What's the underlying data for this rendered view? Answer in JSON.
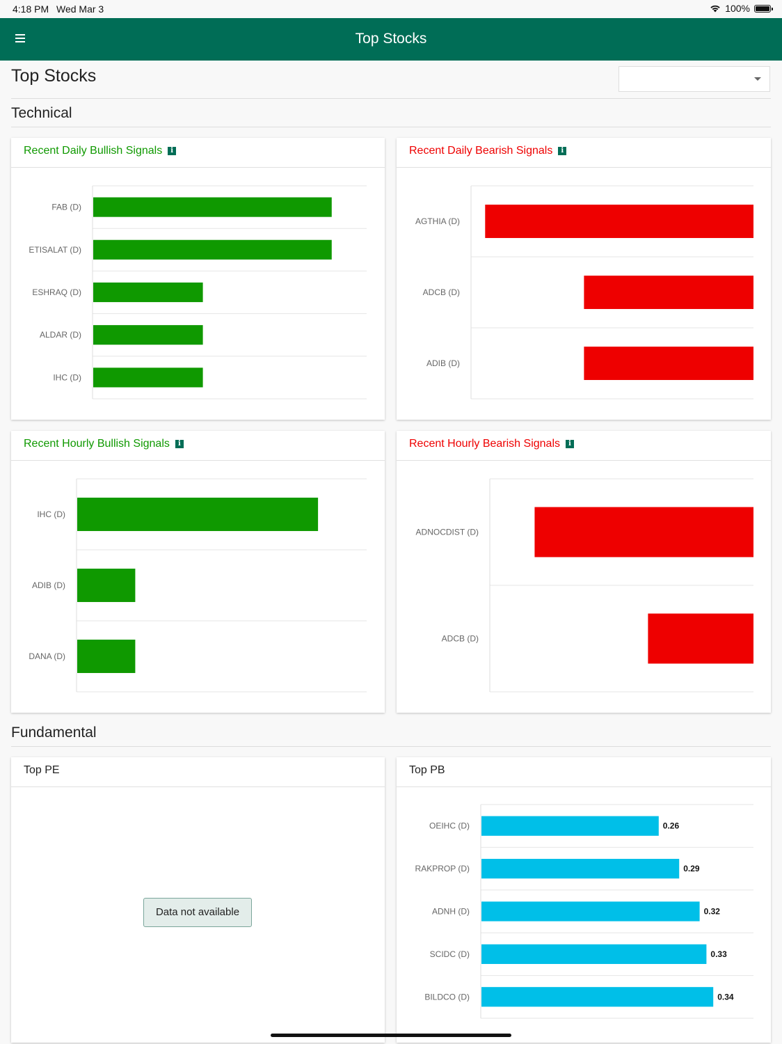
{
  "status_bar": {
    "time": "4:18 PM",
    "date": "Wed Mar 3",
    "battery": "100%"
  },
  "app_bar": {
    "title": "Top Stocks",
    "menu_icon": "hamburger-menu-icon"
  },
  "page": {
    "title": "Top Stocks",
    "dropdown_value": ""
  },
  "sections": {
    "technical": "Technical",
    "fundamental": "Fundamental"
  },
  "colors": {
    "brand": "#006d56",
    "bullish": "#0f9900",
    "bearish": "#ee0000",
    "pb_bar": "#00bfe8"
  },
  "cards": {
    "daily_bullish": {
      "title": "Recent Daily Bullish Signals"
    },
    "daily_bearish": {
      "title": "Recent Daily Bearish Signals"
    },
    "hourly_bullish": {
      "title": "Recent Hourly Bullish Signals"
    },
    "hourly_bearish": {
      "title": "Recent Hourly Bearish Signals"
    },
    "top_pe": {
      "title": "Top PE",
      "empty_message": "Data not available"
    },
    "top_pb": {
      "title": "Top PB"
    }
  },
  "chart_data": [
    {
      "id": "daily_bullish",
      "type": "bar",
      "orientation": "horizontal",
      "categories": [
        "FAB (D)",
        "ETISALAT (D)",
        "ESHRAQ (D)",
        "ALDAR (D)",
        "IHC (D)"
      ],
      "values": [
        0.87,
        0.87,
        0.4,
        0.4,
        0.4
      ],
      "xlim": [
        0,
        1
      ]
    },
    {
      "id": "daily_bearish",
      "type": "bar",
      "orientation": "horizontal",
      "direction": "right-to-left",
      "categories": [
        "AGTHIA (D)",
        "ADCB (D)",
        "ADIB (D)"
      ],
      "values": [
        0.95,
        0.6,
        0.6
      ],
      "xlim": [
        0,
        1
      ]
    },
    {
      "id": "hourly_bullish",
      "type": "bar",
      "orientation": "horizontal",
      "categories": [
        "IHC (D)",
        "ADIB (D)",
        "DANA (D)"
      ],
      "values": [
        0.83,
        0.2,
        0.2
      ],
      "xlim": [
        0,
        1
      ]
    },
    {
      "id": "hourly_bearish",
      "type": "bar",
      "orientation": "horizontal",
      "direction": "right-to-left",
      "categories": [
        "ADNOCDIST (D)",
        "ADCB (D)"
      ],
      "values": [
        0.83,
        0.4
      ],
      "xlim": [
        0,
        1
      ]
    },
    {
      "id": "top_pb",
      "type": "bar",
      "orientation": "horizontal",
      "categories": [
        "OEIHC (D)",
        "RAKPROP (D)",
        "ADNH (D)",
        "SCIDC (D)",
        "BILDCO (D)"
      ],
      "values": [
        0.26,
        0.29,
        0.32,
        0.33,
        0.34
      ],
      "labels": [
        "0.26",
        "0.29",
        "0.32",
        "0.33",
        "0.34"
      ],
      "xlim": [
        0,
        0.4
      ]
    }
  ]
}
